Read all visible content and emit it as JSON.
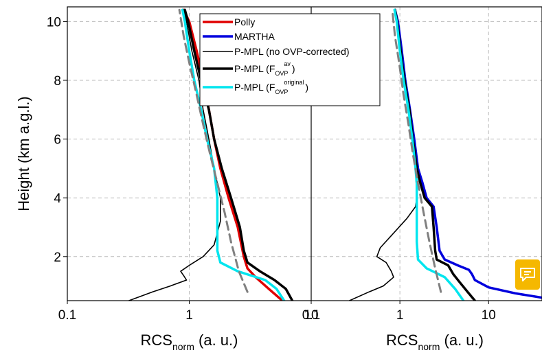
{
  "chart_data": {
    "type": "line",
    "ylabel": "Height (km a.g.l.)",
    "ylim": [
      0.5,
      10.5
    ],
    "y_ticks": [
      2,
      4,
      6,
      8,
      10
    ],
    "x_scale": "log",
    "grid": true,
    "legend_position": "top-right of left panel",
    "legend": [
      {
        "label": "Polly",
        "color": "#e00000"
      },
      {
        "label": "MARTHA",
        "color": "#0000dd"
      },
      {
        "label": "P-MPL (no OVP-corrected)",
        "color": "#000000"
      },
      {
        "label": "P-MPL (F",
        "sub": "OVP",
        "sup": "av",
        "close": ")",
        "color": "#000000"
      },
      {
        "label": "P-MPL (F",
        "sub": "OVP",
        "sup": "original",
        "close": ")",
        "color": "#00e5ee"
      }
    ],
    "panels": [
      {
        "xlabel": "RCS",
        "xlabel_sub": "norm",
        "xlabel_tail": " (a. u.)",
        "xlim": [
          0.1,
          10
        ],
        "x_ticks": [
          {
            "v": 0.1,
            "label": "0.1"
          },
          {
            "v": 1,
            "label": "1"
          },
          {
            "v": 10,
            "label": "10"
          }
        ],
        "series": [
          {
            "name": "Polly",
            "color": "#e00000",
            "points": [
              [
                5.8,
                0.5
              ],
              [
                4.5,
                0.9
              ],
              [
                3.5,
                1.3
              ],
              [
                3.0,
                1.6
              ],
              [
                2.8,
                2.0
              ],
              [
                2.5,
                3.0
              ],
              [
                2.1,
                4.0
              ],
              [
                1.8,
                5.0
              ],
              [
                1.6,
                6.0
              ],
              [
                1.45,
                7.0
              ],
              [
                1.3,
                8.0
              ],
              [
                1.15,
                9.0
              ],
              [
                1.0,
                10.0
              ],
              [
                0.9,
                10.4
              ]
            ]
          },
          {
            "name": "P-MPL (no OVP-corrected)",
            "color": "#000000",
            "points": [
              [
                0.32,
                0.5
              ],
              [
                0.5,
                0.8
              ],
              [
                0.7,
                1.0
              ],
              [
                0.95,
                1.2
              ],
              [
                0.9,
                1.35
              ],
              [
                0.85,
                1.5
              ],
              [
                1.0,
                1.7
              ],
              [
                1.3,
                2.0
              ],
              [
                1.6,
                2.4
              ],
              [
                1.8,
                3.2
              ],
              [
                1.8,
                4.0
              ],
              [
                1.6,
                5.0
              ],
              [
                1.45,
                6.0
              ],
              [
                1.3,
                7.0
              ],
              [
                1.2,
                8.0
              ],
              [
                1.05,
                9.0
              ],
              [
                0.95,
                10.0
              ],
              [
                0.9,
                10.4
              ]
            ]
          },
          {
            "name": "P-MPL (F_OVP^av)",
            "color": "#000000",
            "points": [
              [
                7.0,
                0.5
              ],
              [
                6.2,
                0.9
              ],
              [
                5.0,
                1.2
              ],
              [
                3.8,
                1.5
              ],
              [
                3.0,
                1.8
              ],
              [
                2.8,
                2.2
              ],
              [
                2.6,
                3.0
              ],
              [
                2.2,
                4.0
              ],
              [
                1.85,
                5.0
              ],
              [
                1.6,
                6.0
              ],
              [
                1.45,
                7.0
              ],
              [
                1.25,
                8.0
              ],
              [
                1.1,
                9.0
              ],
              [
                0.98,
                10.0
              ],
              [
                0.92,
                10.4
              ]
            ]
          },
          {
            "name": "P-MPL (F_OVP^original)",
            "color": "#00e5ee",
            "points": [
              [
                6.0,
                0.5
              ],
              [
                5.2,
                0.9
              ],
              [
                4.2,
                1.2
              ],
              [
                2.5,
                1.5
              ],
              [
                1.8,
                1.8
              ],
              [
                1.7,
                2.2
              ],
              [
                1.7,
                3.0
              ],
              [
                1.7,
                4.0
              ],
              [
                1.6,
                5.0
              ],
              [
                1.4,
                6.0
              ],
              [
                1.25,
                7.0
              ],
              [
                1.1,
                8.0
              ],
              [
                1.0,
                9.0
              ],
              [
                0.92,
                10.0
              ],
              [
                0.88,
                10.4
              ]
            ]
          },
          {
            "name": "fit",
            "color": "#808080",
            "dashed": true,
            "points": [
              [
                3.0,
                0.8
              ],
              [
                2.55,
                1.5
              ],
              [
                2.2,
                2.5
              ],
              [
                1.95,
                3.5
              ],
              [
                1.7,
                4.5
              ],
              [
                1.48,
                5.5
              ],
              [
                1.3,
                6.5
              ],
              [
                1.15,
                7.5
              ],
              [
                1.0,
                8.6
              ],
              [
                0.9,
                9.5
              ],
              [
                0.83,
                10.4
              ]
            ]
          }
        ]
      },
      {
        "xlabel": "RCS",
        "xlabel_sub": "norm",
        "xlabel_tail": " (a. u.)",
        "xlim": [
          0.1,
          40
        ],
        "x_ticks": [
          {
            "v": 0.1,
            "label": "0.1"
          },
          {
            "v": 1,
            "label": "1"
          },
          {
            "v": 10,
            "label": "10"
          }
        ],
        "series": [
          {
            "name": "MARTHA",
            "color": "#0000dd",
            "points": [
              [
                40,
                0.6
              ],
              [
                20,
                0.75
              ],
              [
                10,
                0.95
              ],
              [
                7.0,
                1.2
              ],
              [
                6.5,
                1.4
              ],
              [
                6.0,
                1.55
              ],
              [
                4.5,
                1.7
              ],
              [
                3.2,
                1.9
              ],
              [
                2.8,
                2.2
              ],
              [
                2.6,
                3.0
              ],
              [
                2.4,
                3.7
              ],
              [
                2.0,
                4.0
              ],
              [
                1.8,
                4.5
              ],
              [
                1.6,
                5.0
              ],
              [
                1.45,
                6.0
              ],
              [
                1.3,
                7.0
              ],
              [
                1.15,
                8.0
              ],
              [
                1.05,
                9.0
              ],
              [
                0.95,
                10.0
              ],
              [
                0.88,
                10.4
              ]
            ]
          },
          {
            "name": "P-MPL (no OVP-corrected)",
            "color": "#000000",
            "points": [
              [
                0.27,
                0.5
              ],
              [
                0.45,
                0.8
              ],
              [
                0.65,
                1.0
              ],
              [
                0.85,
                1.3
              ],
              [
                0.8,
                1.5
              ],
              [
                0.7,
                1.8
              ],
              [
                0.55,
                2.0
              ],
              [
                0.6,
                2.3
              ],
              [
                0.85,
                2.8
              ],
              [
                1.2,
                3.3
              ],
              [
                1.5,
                3.7
              ],
              [
                1.55,
                4.0
              ],
              [
                1.5,
                5.0
              ],
              [
                1.4,
                6.0
              ],
              [
                1.28,
                7.0
              ],
              [
                1.15,
                8.0
              ],
              [
                1.02,
                9.0
              ],
              [
                0.93,
                10.0
              ],
              [
                0.88,
                10.4
              ]
            ]
          },
          {
            "name": "P-MPL (F_OVP^av)",
            "color": "#000000",
            "points": [
              [
                7.0,
                0.5
              ],
              [
                5.8,
                0.8
              ],
              [
                4.8,
                1.1
              ],
              [
                4.0,
                1.4
              ],
              [
                3.5,
                1.7
              ],
              [
                2.6,
                1.9
              ],
              [
                2.5,
                2.2
              ],
              [
                2.4,
                3.0
              ],
              [
                2.3,
                3.7
              ],
              [
                1.9,
                4.0
              ],
              [
                1.7,
                4.5
              ],
              [
                1.55,
                5.0
              ],
              [
                1.4,
                6.0
              ],
              [
                1.28,
                7.0
              ],
              [
                1.12,
                8.0
              ],
              [
                1.02,
                9.0
              ],
              [
                0.93,
                10.0
              ],
              [
                0.88,
                10.4
              ]
            ]
          },
          {
            "name": "P-MPL (F_OVP^original)",
            "color": "#00e5ee",
            "points": [
              [
                5.2,
                0.5
              ],
              [
                4.2,
                0.9
              ],
              [
                3.2,
                1.3
              ],
              [
                2.0,
                1.6
              ],
              [
                1.6,
                1.9
              ],
              [
                1.55,
                2.5
              ],
              [
                1.55,
                3.5
              ],
              [
                1.55,
                4.5
              ],
              [
                1.5,
                5.0
              ],
              [
                1.38,
                6.0
              ],
              [
                1.25,
                7.0
              ],
              [
                1.1,
                8.0
              ],
              [
                1.0,
                9.0
              ],
              [
                0.92,
                10.0
              ],
              [
                0.87,
                10.4
              ]
            ]
          },
          {
            "name": "fit",
            "color": "#808080",
            "dashed": true,
            "points": [
              [
                2.9,
                0.8
              ],
              [
                2.5,
                1.6
              ],
              [
                2.15,
                2.5
              ],
              [
                1.85,
                3.5
              ],
              [
                1.6,
                4.5
              ],
              [
                1.4,
                5.5
              ],
              [
                1.25,
                6.5
              ],
              [
                1.1,
                7.5
              ],
              [
                0.98,
                8.6
              ],
              [
                0.88,
                9.5
              ],
              [
                0.82,
                10.4
              ]
            ]
          }
        ]
      }
    ]
  },
  "feedback": {
    "icon": "feedback-icon",
    "color": "#f5b800"
  }
}
